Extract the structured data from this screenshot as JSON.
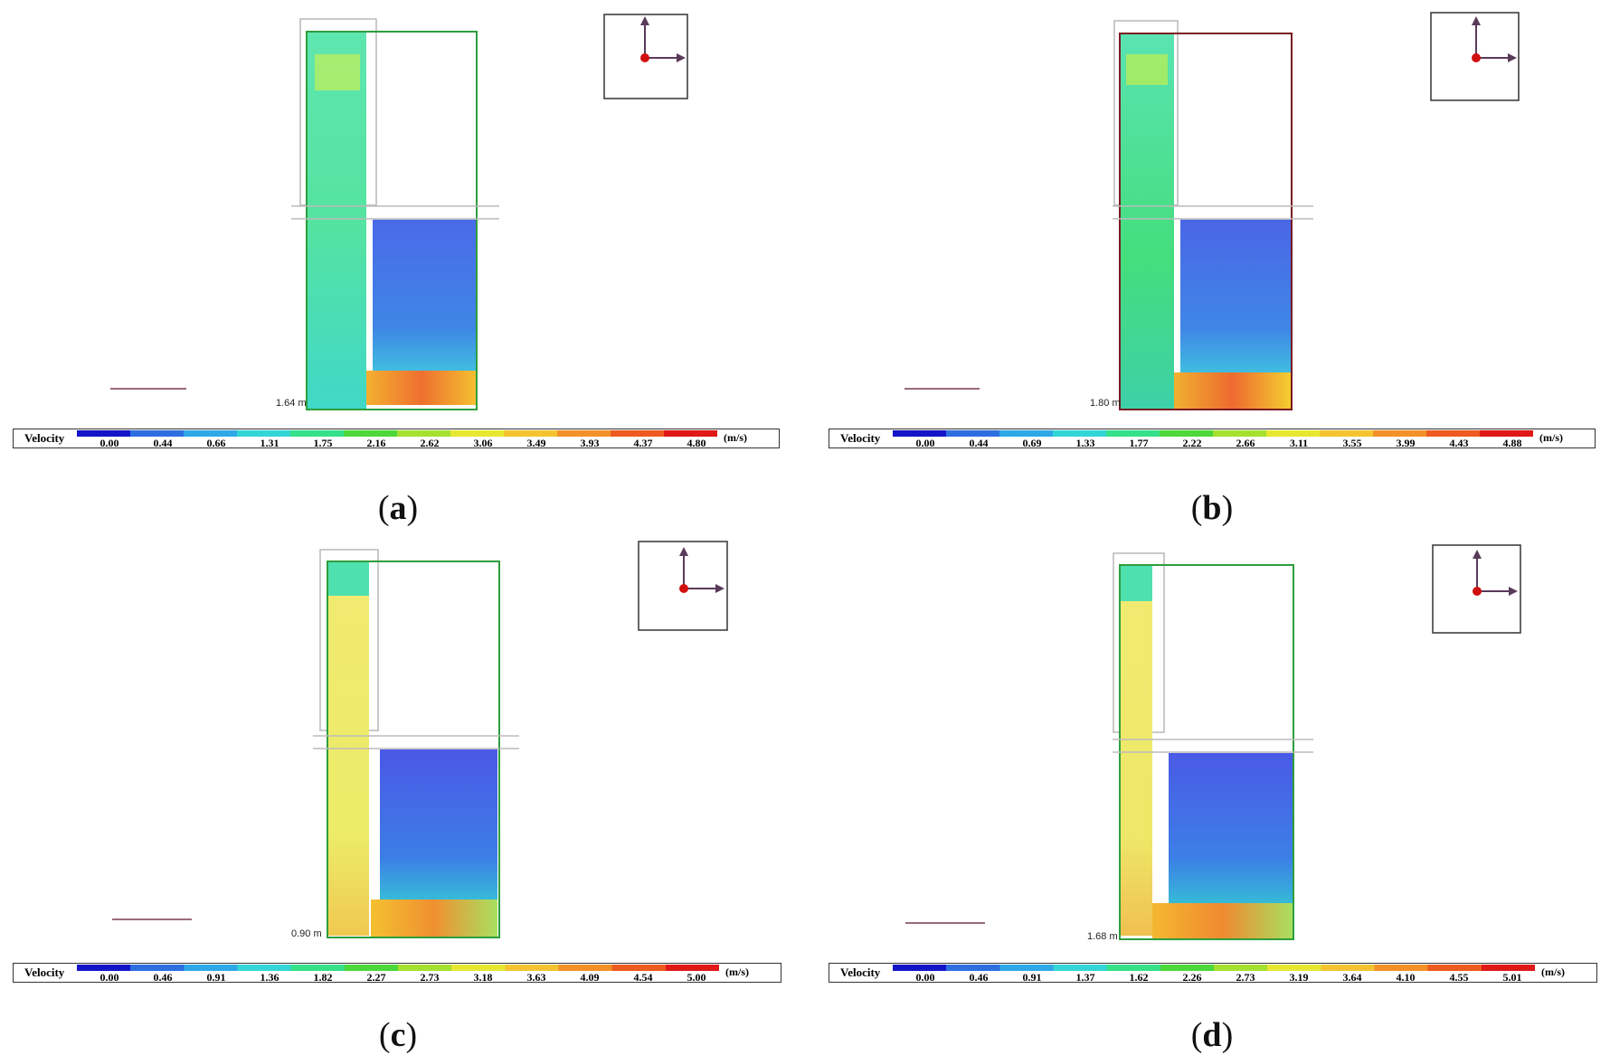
{
  "panels": [
    {
      "id": "a",
      "caption": "a",
      "dim_label": "1.64 m",
      "legend_title": "Velocity",
      "unit": "(m/s)",
      "ticks": [
        "0.00",
        "0.44",
        "0.66",
        "1.31",
        "1.75",
        "2.16",
        "2.62",
        "3.06",
        "3.49",
        "3.93",
        "4.37",
        "4.80"
      ]
    },
    {
      "id": "b",
      "caption": "b",
      "dim_label": "1.80 m",
      "legend_title": "Velocity",
      "unit": "(m/s)",
      "ticks": [
        "0.00",
        "0.44",
        "0.69",
        "1.33",
        "1.77",
        "2.22",
        "2.66",
        "3.11",
        "3.55",
        "3.99",
        "4.43",
        "4.88"
      ]
    },
    {
      "id": "c",
      "caption": "c",
      "dim_label": "0.90 m",
      "legend_title": "Velocity",
      "unit": "(m/s)",
      "ticks": [
        "0.00",
        "0.46",
        "0.91",
        "1.36",
        "1.82",
        "2.27",
        "2.73",
        "3.18",
        "3.63",
        "4.09",
        "4.54",
        "5.00"
      ]
    },
    {
      "id": "d",
      "caption": "d",
      "dim_label": "1.68 m",
      "legend_title": "Velocity",
      "unit": "(m/s)",
      "ticks": [
        "0.00",
        "0.46",
        "0.91",
        "1.37",
        "1.62",
        "2.26",
        "2.73",
        "3.19",
        "3.64",
        "4.10",
        "4.55",
        "5.01"
      ]
    }
  ],
  "colors": {
    "colormap": [
      "#1515c8",
      "#2d6fe0",
      "#2fa8e8",
      "#33d6d6",
      "#35e08a",
      "#4cd83a",
      "#a5e030",
      "#e6e830",
      "#f4c430",
      "#f39128",
      "#ee5a20",
      "#e01818"
    ],
    "outline_green": "#2e9e3e",
    "outline_dark_red": "#7a1a22",
    "axis_color": "#5a3a5a",
    "origin_dot": "#d01010"
  }
}
